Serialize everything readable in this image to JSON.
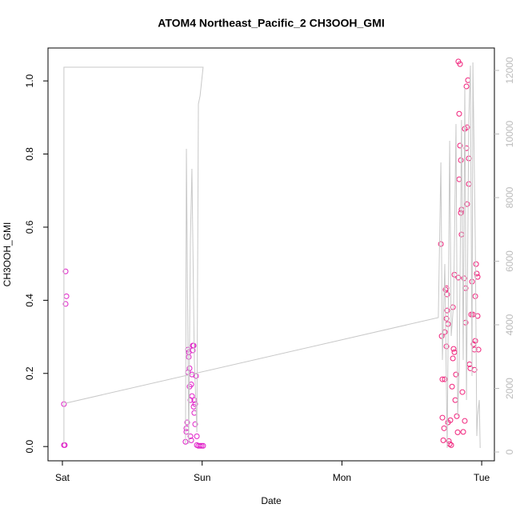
{
  "chart_data": {
    "type": "scatter",
    "title": "ATOM4 Northeast_Pacific_2 CH3OOH_GMI",
    "xlabel": "Date",
    "ylabel": "CH3OOH_GMI",
    "xlim": [
      -0.103,
      3.091
    ],
    "xticks": [
      {
        "value": 0,
        "label": "Sat"
      },
      {
        "value": 1,
        "label": "Sun"
      },
      {
        "value": 2,
        "label": "Mon"
      },
      {
        "value": 3,
        "label": "Tue"
      }
    ],
    "ylim": [
      -0.039,
      1.09
    ],
    "yticks": [
      {
        "value": 0,
        "label": "0.0"
      },
      0.2,
      0.4,
      0.6,
      0.8,
      {
        "value": 1,
        "label": "1.0"
      }
    ],
    "y2lim": [
      -277,
      12705
    ],
    "y2ticks": [
      0,
      2000,
      4000,
      6000,
      8000,
      10000,
      12000
    ],
    "y2color": "#bbbbbb",
    "series": [
      {
        "color": "#e020c8",
        "x": [
          0.011,
          0.017,
          0.011,
          0.023,
          0.029,
          0.023,
          0.881,
          0.887,
          0.887,
          0.893,
          0.899,
          0.899,
          0.904,
          0.904,
          0.91,
          0.91,
          0.916,
          0.916,
          0.922,
          0.922,
          0.927,
          0.927,
          0.933,
          0.933,
          0.939,
          0.939,
          0.944,
          0.944,
          0.95,
          0.95,
          0.956,
          0.962,
          0.962,
          0.973,
          0.985,
          0.996,
          1.007
        ],
        "values": [
          0.004,
          0.004,
          0.116,
          0.479,
          0.411,
          0.39,
          0.013,
          0.04,
          0.05,
          0.066,
          0.203,
          0.265,
          0.258,
          0.245,
          0.214,
          0.164,
          0.127,
          0.028,
          0.017,
          0.17,
          0.197,
          0.138,
          0.276,
          0.263,
          0.276,
          0.109,
          0.127,
          0.092,
          0.116,
          0.061,
          0.193,
          0.028,
          0.004,
          0.002,
          0.002,
          0.002,
          0.002
        ]
      },
      {
        "color": "#f0207a",
        "x": [
          2.708,
          2.714,
          2.719,
          2.719,
          2.725,
          2.731,
          2.736,
          2.736,
          2.742,
          2.748,
          2.748,
          2.748,
          2.753,
          2.753,
          2.759,
          2.759,
          2.765,
          2.771,
          2.776,
          2.782,
          2.788,
          2.794,
          2.794,
          2.799,
          2.805,
          2.805,
          2.811,
          2.816,
          2.822,
          2.828,
          2.833,
          2.833,
          2.839,
          2.839,
          2.845,
          2.845,
          2.851,
          2.851,
          2.856,
          2.856,
          2.862,
          2.868,
          2.874,
          2.879,
          2.879,
          2.885,
          2.885,
          2.891,
          2.891,
          2.896,
          2.896,
          2.902,
          2.908,
          2.908,
          2.913,
          2.919,
          2.925,
          2.931,
          2.937,
          2.942,
          2.948,
          2.948,
          2.954,
          2.954,
          2.96,
          2.965,
          2.971,
          2.971,
          2.977
        ],
        "values": [
          0.554,
          0.302,
          0.184,
          0.079,
          0.017,
          0.05,
          0.313,
          0.184,
          0.429,
          0.433,
          0.35,
          0.274,
          0.416,
          0.372,
          0.335,
          0.066,
          0.015,
          0.007,
          0.072,
          0.004,
          0.164,
          0.381,
          0.241,
          0.267,
          0.47,
          0.258,
          0.127,
          0.197,
          0.083,
          0.039,
          0.462,
          1.053,
          0.91,
          0.731,
          0.823,
          1.046,
          0.783,
          0.639,
          0.648,
          0.58,
          0.149,
          0.04,
          0.46,
          0.869,
          0.07,
          0.339,
          0.433,
          0.816,
          0.985,
          0.873,
          0.663,
          1.002,
          0.788,
          0.718,
          0.225,
          0.214,
          0.361,
          0.451,
          0.361,
          0.28,
          0.21,
          0.265,
          0.289,
          0.411,
          0.499,
          0.473,
          0.464,
          0.357,
          0.265
        ]
      },
      {
        "type": "line",
        "axis": "y2",
        "color": "#c8c8c8",
        "x": [
          0.011,
          0.011,
          1.007,
          0.985,
          0.973,
          0.962,
          0.944,
          0.927,
          0.916,
          0.904,
          0.887,
          0.881,
          null,
          0.023,
          2.69,
          2.708,
          2.719,
          2.736,
          2.753,
          2.771,
          2.782,
          2.799,
          2.816,
          2.828,
          2.839,
          2.856,
          2.868,
          2.879,
          2.891,
          2.908,
          2.919,
          2.931,
          2.937,
          2.954,
          2.965,
          2.971,
          2.983,
          2.989
        ],
        "values": [
          252,
          12100,
          12100,
          11200,
          10945,
          629,
          2893,
          8907,
          6667,
          252,
          9536,
          252,
          null,
          1535,
          4227,
          9108,
          2893,
          5913,
          126,
          9787,
          3648,
          4655,
          10316,
          1132,
          2642,
          10441,
          2893,
          11448,
          1635,
          10441,
          12152,
          2390,
          12253,
          6667,
          503,
          1132,
          1635,
          126
        ]
      }
    ]
  }
}
